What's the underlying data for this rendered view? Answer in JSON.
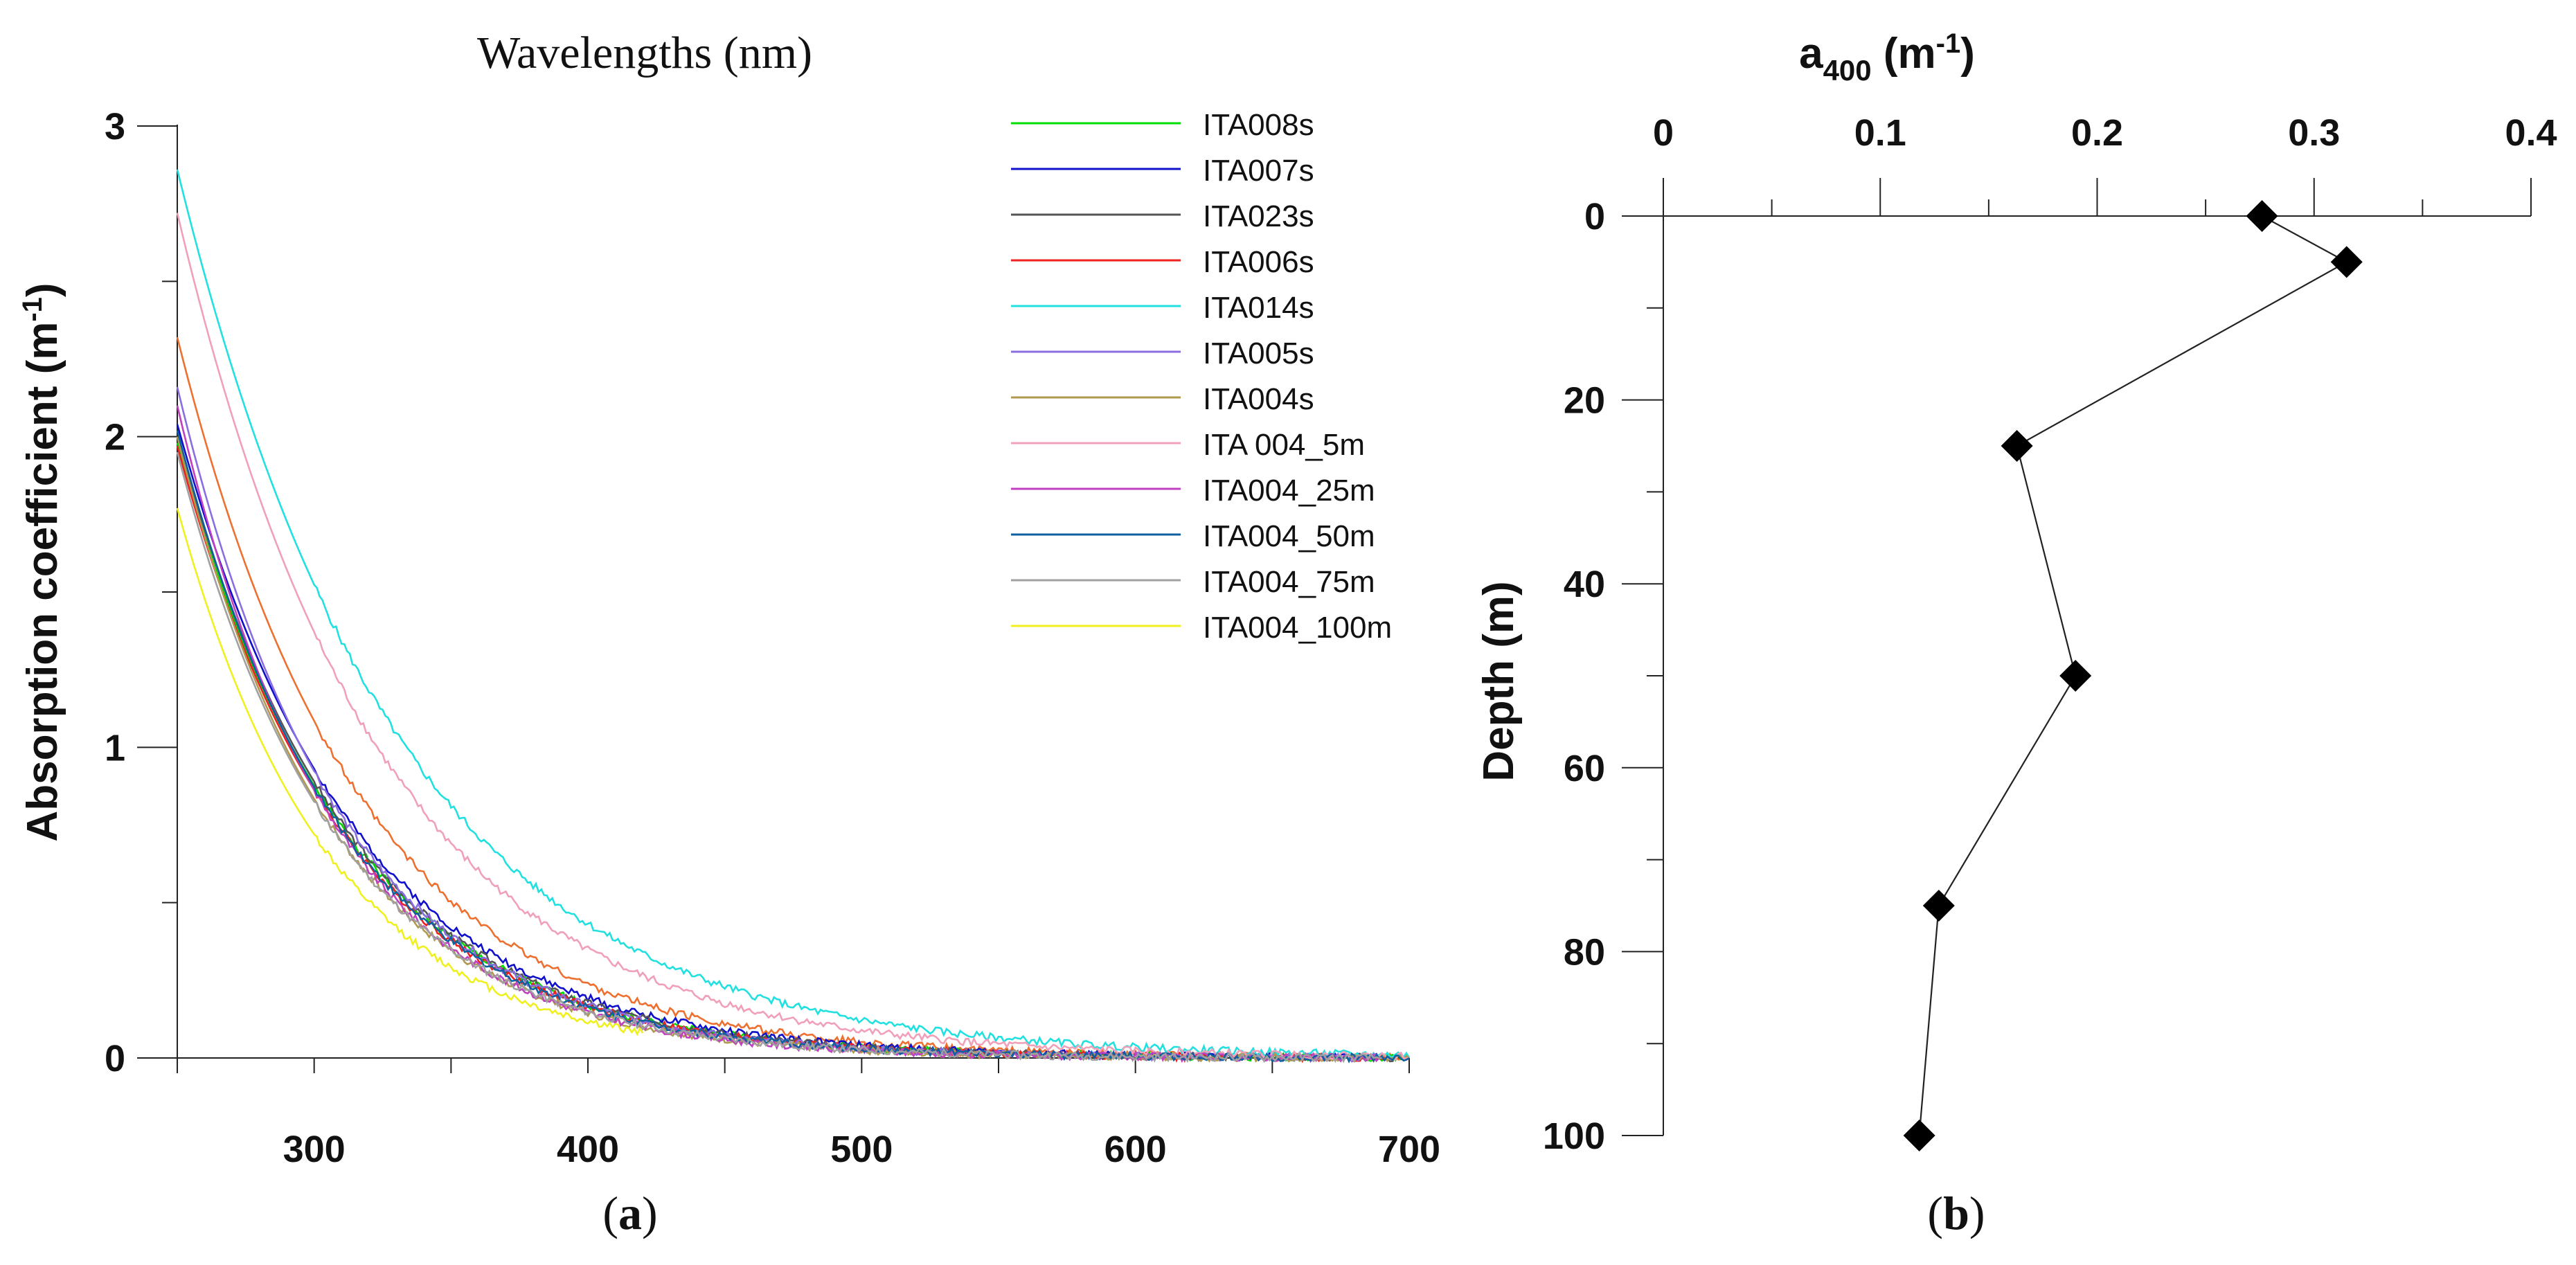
{
  "chart_data": [
    {
      "panel": "a",
      "type": "line",
      "title": "Wavelengths (nm)",
      "ylabel_main": "Absorption coefficient (m",
      "ylabel_sup": "-1",
      "ylabel_end": ")",
      "caption_open": "(",
      "caption_letter": "a",
      "caption_close": ")",
      "xlim": [
        250,
        700
      ],
      "ylim": [
        0,
        3
      ],
      "xticks": [
        300,
        400,
        500,
        600,
        700
      ],
      "xtick_labels": [
        "300",
        "400",
        "500",
        "600",
        "700"
      ],
      "yticks": [
        0,
        1,
        2,
        3
      ],
      "ytick_labels": [
        "0",
        "1",
        "2",
        "3"
      ],
      "legend_position": "top-right",
      "series": [
        {
          "name": "ITA008s",
          "color": "#00dd00",
          "a0": 1.98,
          "s": 0.0163,
          "xmax": 700
        },
        {
          "name": "ITA007s",
          "color": "#1010cc",
          "a0": 2.04,
          "s": 0.0157,
          "xmax": 690
        },
        {
          "name": "ITA023s",
          "color": "#555555",
          "a0": 2.0,
          "s": 0.0162,
          "xmax": 700
        },
        {
          "name": "ITA006s",
          "color": "#ee2020",
          "a0": 1.97,
          "s": 0.0165,
          "xmax": 700
        },
        {
          "name": "ITA014s",
          "color": "#22e0e0",
          "a0": 2.86,
          "s": 0.0126,
          "xmax": 700
        },
        {
          "name": "ITA005s",
          "color": "#8a6ee0",
          "a0": 2.16,
          "s": 0.017,
          "xmax": 690
        },
        {
          "name": "ITA004s",
          "color": "#b09a50",
          "a0": 2.0,
          "s": 0.0175,
          "xmax": 700
        },
        {
          "name": "ITA 004_5m",
          "color": "#f0a0b8",
          "a0": 2.72,
          "s": 0.0137,
          "xmax": 700
        },
        {
          "name": "ITA004_25m",
          "color": "#c040c0",
          "a0": 2.1,
          "s": 0.0178,
          "xmax": 690
        },
        {
          "name": "ITA004_50m",
          "color": "#1060a0",
          "a0": 2.02,
          "s": 0.0168,
          "xmax": 700
        },
        {
          "name": "ITA004_75m",
          "color": "#a0a0a0",
          "a0": 1.95,
          "s": 0.0172,
          "xmax": 690
        },
        {
          "name": "ITA004_100m",
          "color": "#f0f020",
          "a0": 1.77,
          "s": 0.018,
          "xmax": 420
        }
      ],
      "extra_curve": {
        "color": "#ee7030",
        "a0": 2.32,
        "s": 0.0152,
        "xmax": 700
      }
    },
    {
      "panel": "b",
      "type": "scatter-line",
      "title_main": "a",
      "title_sub": "400",
      "title_units": " (m",
      "title_sup": "-1",
      "title_end": ")",
      "ylabel": "Depth (m)",
      "caption_open": "(",
      "caption_letter": "b",
      "caption_close": ")",
      "xlim": [
        0,
        0.4
      ],
      "ylim": [
        0,
        100
      ],
      "y_inverted": true,
      "xticks": [
        0,
        0.1,
        0.2,
        0.3,
        0.4
      ],
      "xtick_labels": [
        "0",
        "0.1",
        "0.2",
        "0.3",
        "0.4"
      ],
      "yticks": [
        0,
        20,
        40,
        60,
        80,
        100
      ],
      "ytick_labels": [
        "0",
        "20",
        "40",
        "60",
        "80",
        "100"
      ],
      "points": [
        {
          "depth": 0,
          "a400": 0.276
        },
        {
          "depth": 5,
          "a400": 0.315
        },
        {
          "depth": 25,
          "a400": 0.163
        },
        {
          "depth": 50,
          "a400": 0.19
        },
        {
          "depth": 75,
          "a400": 0.127
        },
        {
          "depth": 100,
          "a400": 0.118
        }
      ]
    }
  ]
}
